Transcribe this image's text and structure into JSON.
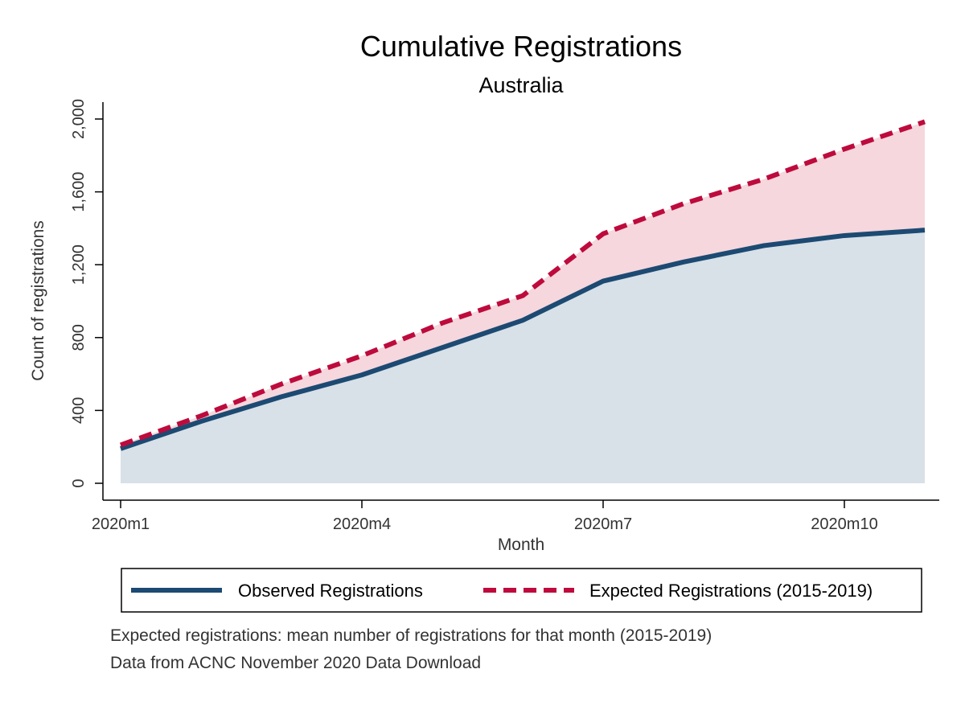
{
  "chart_data": {
    "type": "area",
    "title": "Cumulative Registrations",
    "subtitle": "Australia",
    "xlabel": "Month",
    "ylabel": "Count of registrations",
    "x": [
      "2020m1",
      "2020m2",
      "2020m3",
      "2020m4",
      "2020m5",
      "2020m6",
      "2020m7",
      "2020m8",
      "2020m9",
      "2020m10",
      "2020m11"
    ],
    "xticks": [
      "2020m1",
      "2020m4",
      "2020m7",
      "2020m10"
    ],
    "yticks": [
      "0",
      "400",
      "800",
      "1,200",
      "1,600",
      "2,000"
    ],
    "ylim": [
      0,
      2000
    ],
    "series": [
      {
        "name": "Observed Registrations",
        "color": "#1c4a72",
        "fill": "#d8e0e8",
        "style": "solid",
        "values": [
          190,
          340,
          475,
          595,
          745,
          895,
          1110,
          1215,
          1305,
          1360,
          1390
        ]
      },
      {
        "name": "Expected Registrations (2015-2019)",
        "color": "#be0a3c",
        "fill": "#f5d7dd",
        "style": "dashed",
        "values": [
          210,
          370,
          545,
          700,
          880,
          1030,
          1370,
          1535,
          1670,
          1835,
          1985
        ]
      }
    ],
    "legend": "bottom",
    "grid": false,
    "notes": [
      "Expected registrations: mean number of registrations for that month (2015-2019)",
      "Data from ACNC November 2020 Data Download"
    ]
  }
}
